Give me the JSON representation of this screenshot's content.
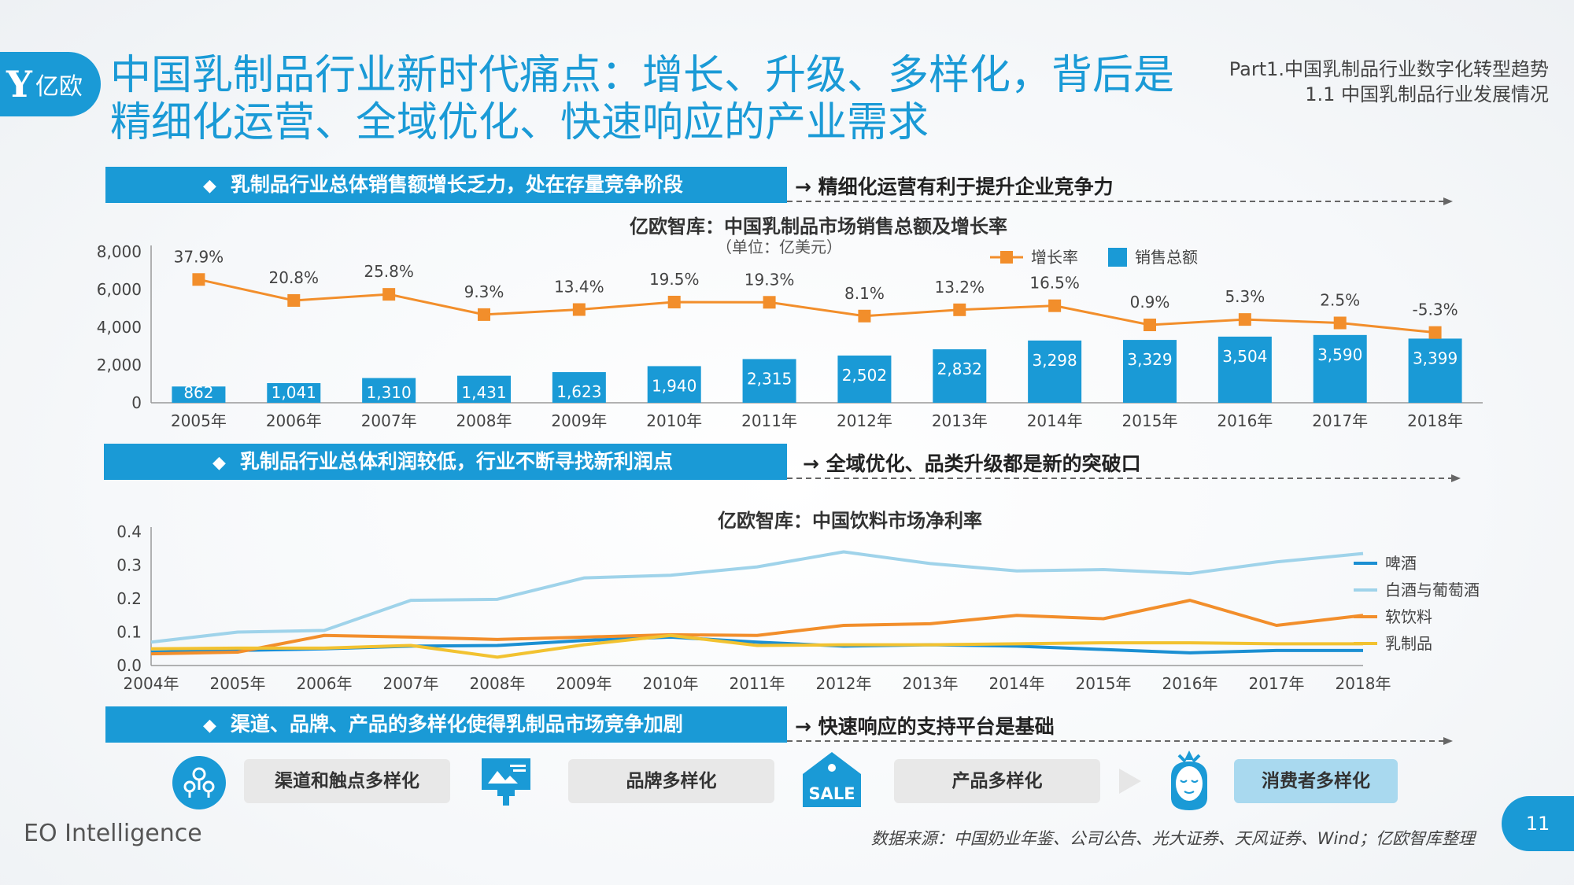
{
  "logo": {
    "mark": "Y",
    "text": "亿欧"
  },
  "title": "中国乳制品行业新时代痛点：增长、升级、多样化，背后是精细化运营、全域优化、快速响应的产业需求",
  "part": {
    "line1": "Part1.中国乳制品行业数字化转型趋势",
    "line2": "1.1 中国乳制品行业发展情况"
  },
  "section1": {
    "diamond": "◆",
    "banner": "乳制品行业总体销售额增长乏力，处在存量竞争阶段",
    "arrow_text": "精细化运营有利于提升企业竞争力"
  },
  "section2": {
    "diamond": "◆",
    "banner": "乳制品行业总体利润较低，行业不断寻找新利润点",
    "arrow_text": "全域优化、品类升级都是新的突破口"
  },
  "section3": {
    "diamond": "◆",
    "banner": "渠道、品牌、产品的多样化使得乳制品市场竞争加剧",
    "arrow_text": "快速响应的支持平台是基础"
  },
  "arrow_glyph": "→",
  "chart_data": [
    {
      "type": "bar",
      "title": "亿欧智库：中国乳制品市场销售总额及增长率",
      "subtitle": "（单位：亿美元）",
      "categories": [
        "2005年",
        "2006年",
        "2007年",
        "2008年",
        "2009年",
        "2010年",
        "2011年",
        "2012年",
        "2013年",
        "2014年",
        "2015年",
        "2016年",
        "2017年",
        "2018年"
      ],
      "series": [
        {
          "name": "销售总额",
          "type": "bar",
          "values": [
            862,
            1041,
            1310,
            1431,
            1623,
            1940,
            2315,
            2502,
            2832,
            3298,
            3329,
            3504,
            3590,
            3399
          ],
          "labels": [
            "862",
            "1,041",
            "1,310",
            "1,431",
            "1,623",
            "1,940",
            "2,315",
            "2,502",
            "2,832",
            "3,298",
            "3,329",
            "3,504",
            "3,590",
            "3,399"
          ]
        },
        {
          "name": "增长率",
          "type": "line",
          "values": [
            37.9,
            20.8,
            25.8,
            9.3,
            13.4,
            19.5,
            19.3,
            8.1,
            13.2,
            16.5,
            0.9,
            5.3,
            2.5,
            -5.3
          ],
          "labels": [
            "37.9%",
            "20.8%",
            "25.8%",
            "9.3%",
            "13.4%",
            "19.5%",
            "19.3%",
            "8.1%",
            "13.2%",
            "16.5%",
            "0.9%",
            "5.3%",
            "2.5%",
            "-5.3%"
          ]
        }
      ],
      "yticks": [
        "8,000",
        "6,000",
        "4,000",
        "2,000",
        "0"
      ],
      "ylim": [
        0,
        8000
      ],
      "legend": [
        "增长率",
        "销售总额"
      ],
      "colors": {
        "bar": "#1a9ad6",
        "line": "#f28e2b"
      }
    },
    {
      "type": "line",
      "title": "亿欧智库：中国饮料市场净利率",
      "x": [
        "2004年",
        "2005年",
        "2006年",
        "2007年",
        "2008年",
        "2009年",
        "2010年",
        "2011年",
        "2012年",
        "2013年",
        "2014年",
        "2015年",
        "2016年",
        "2017年",
        "2018年"
      ],
      "yticks": [
        "0.4",
        "0.3",
        "0.2",
        "0.1",
        "0.0"
      ],
      "ylim": [
        0,
        0.4
      ],
      "series": [
        {
          "name": "啤酒",
          "color": "#1b8fd2",
          "values": [
            0.04,
            0.045,
            0.05,
            0.058,
            0.06,
            0.075,
            0.085,
            0.07,
            0.058,
            0.062,
            0.058,
            0.048,
            0.038,
            0.045,
            0.045
          ]
        },
        {
          "name": "白酒与葡萄酒",
          "color": "#9fd3ea",
          "values": [
            0.07,
            0.1,
            0.105,
            0.195,
            0.198,
            0.262,
            0.27,
            0.295,
            0.34,
            0.305,
            0.283,
            0.287,
            0.275,
            0.31,
            0.335
          ]
        },
        {
          "name": "软饮料",
          "color": "#f28e2b",
          "values": [
            0.035,
            0.04,
            0.09,
            0.085,
            0.078,
            0.085,
            0.092,
            0.09,
            0.12,
            0.125,
            0.15,
            0.14,
            0.195,
            0.12,
            0.15
          ]
        },
        {
          "name": "乳制品",
          "color": "#f2c230",
          "values": [
            0.05,
            0.052,
            0.052,
            0.06,
            0.025,
            0.062,
            0.09,
            0.06,
            0.062,
            0.062,
            0.065,
            0.068,
            0.068,
            0.065,
            0.065
          ]
        }
      ]
    }
  ],
  "pills": [
    "渠道和触点多样化",
    "品牌多样化",
    "产品多样化",
    "消费者多样化"
  ],
  "sale_text": "SALE",
  "footer_left": "EO Intelligence",
  "source": "数据来源：中国奶业年鉴、公司公告、光大证券、天风证券、Wind；亿欧智库整理",
  "page_number": "11"
}
